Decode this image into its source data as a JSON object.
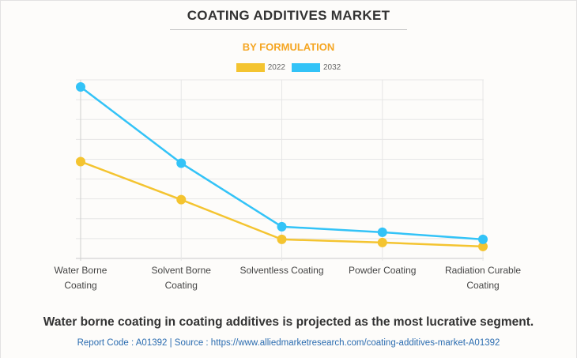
{
  "chart_data": {
    "type": "line",
    "title": "COATING ADDITIVES MARKET",
    "subtitle": "BY FORMULATION",
    "xlabel": "",
    "ylabel": "",
    "categories": [
      [
        "Water Borne",
        "Coating"
      ],
      [
        "Solvent Borne",
        "Coating"
      ],
      [
        "Solventless Coating"
      ],
      [
        "Powder Coating"
      ],
      [
        "Radiation Curable",
        "Coating"
      ]
    ],
    "series": [
      {
        "name": "2022",
        "color": "#f4c430",
        "values": [
          4.88,
          2.96,
          0.96,
          0.8,
          0.6
        ]
      },
      {
        "name": "2032",
        "color": "#33c3f7",
        "values": [
          8.64,
          4.8,
          1.6,
          1.32,
          0.96
        ]
      }
    ],
    "ylim": [
      0,
      9
    ],
    "y_gridlines": 9,
    "y_tick_labels_visible": false,
    "grid": true,
    "legend": "top-center"
  },
  "caption": "Water borne coating in coating additives is projected as the most lucrative segment.",
  "source_line": "Report Code : A01392  |  Source : https://www.alliedmarketresearch.com/coating-additives-market-A01392"
}
